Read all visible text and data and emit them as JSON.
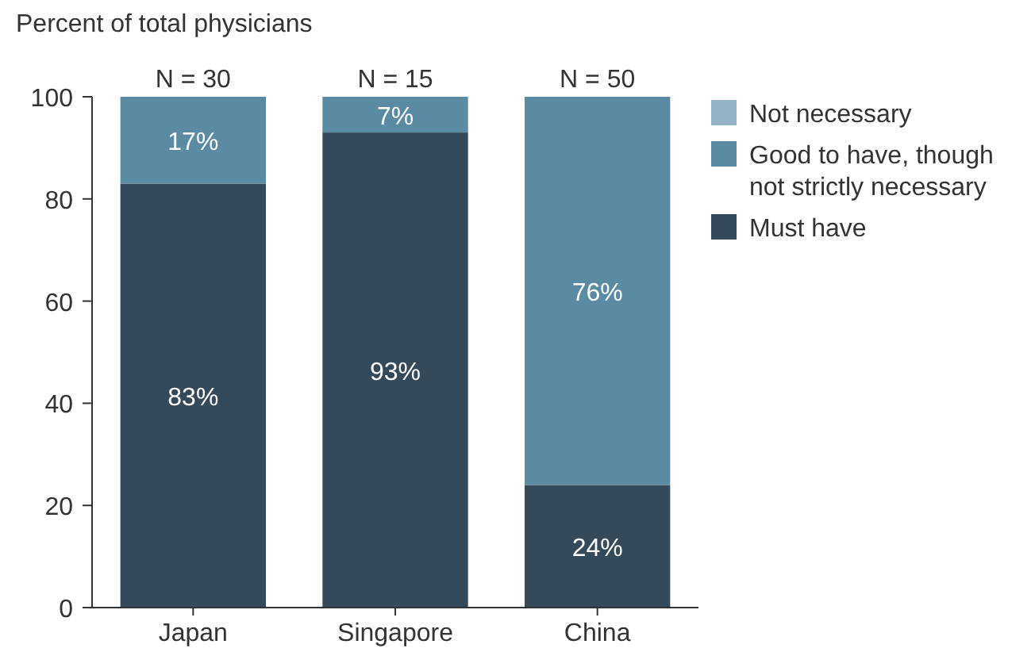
{
  "chart_data": {
    "type": "bar",
    "ylabel": "Percent of total physicians",
    "categories": [
      "Japan",
      "Singapore",
      "China"
    ],
    "stacked": true,
    "ylim": [
      0,
      100
    ],
    "yticks": [
      0,
      20,
      40,
      60,
      80,
      100
    ],
    "grid": false,
    "legend": "top right",
    "annotations": [
      {
        "text": "N = 30",
        "x": "Japan",
        "y": 100
      },
      {
        "text": "N = 15",
        "x": "Singapore",
        "y": 100
      },
      {
        "text": "N = 50",
        "x": "China",
        "y": 100
      }
    ],
    "series": [
      {
        "name": "Must have",
        "color": "#344a5a",
        "values": [
          83,
          93,
          24
        ],
        "value_labels": [
          "83%",
          "93%",
          "24%"
        ]
      },
      {
        "name": "Good to have, though not strictly necessary",
        "color": "#5b8aa3",
        "values": [
          17,
          7,
          76
        ],
        "value_labels": [
          "17%",
          "7%",
          "76%"
        ]
      },
      {
        "name": "Not necessary",
        "color": "#93b3c6",
        "values": [
          0,
          0,
          0
        ],
        "value_labels": [
          null,
          null,
          null
        ]
      }
    ]
  }
}
